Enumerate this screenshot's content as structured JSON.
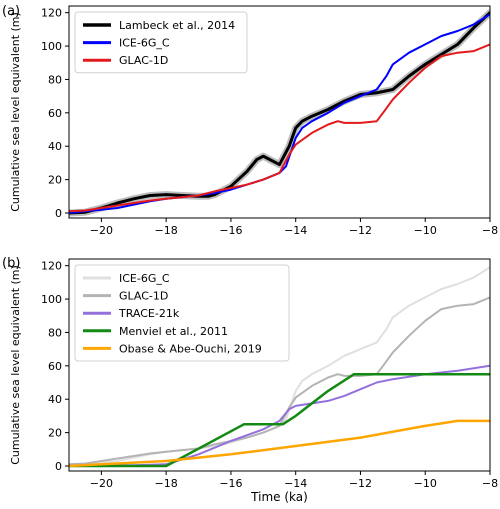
{
  "panels": [
    {
      "letter": "(a)"
    },
    {
      "letter": "(b)"
    }
  ],
  "chart_data": [
    {
      "type": "line",
      "panel": "(a)",
      "xlabel": "",
      "ylabel": "Cumulative sea level equivalent (m)",
      "xlim": [
        -21,
        -8
      ],
      "ylim": [
        -3,
        124
      ],
      "xticks": [
        -20,
        -18,
        -16,
        -14,
        -12,
        -10,
        -8
      ],
      "yticks": [
        0,
        20,
        40,
        60,
        80,
        100,
        120
      ],
      "grid": false,
      "legend": "top-left",
      "series": [
        {
          "name": "Lambeck et al., 2014",
          "color": "#000000",
          "band_color": "#bdbdbd",
          "width": 3,
          "x": [
            -21,
            -20.5,
            -20,
            -19.5,
            -19,
            -18.5,
            -18,
            -17.5,
            -17,
            -16.7,
            -16.5,
            -16,
            -15.5,
            -15.2,
            -15,
            -14.8,
            -14.5,
            -14.2,
            -14,
            -13.8,
            -13.5,
            -13,
            -12.5,
            -12,
            -11.5,
            -11,
            -10.5,
            -10,
            -9.5,
            -9,
            -8.5,
            -8
          ],
          "y": [
            0,
            0.5,
            3,
            6,
            8.5,
            10.5,
            11,
            10.5,
            10,
            10,
            11,
            16,
            25,
            32,
            34,
            32,
            29,
            40,
            51,
            55,
            58,
            62,
            67,
            71,
            72,
            74,
            82,
            89,
            95,
            101,
            111,
            120
          ]
        },
        {
          "name": "ICE-6G_C",
          "color": "#0000ff",
          "width": 2,
          "x": [
            -21,
            -20.5,
            -20,
            -19.5,
            -19,
            -18.5,
            -18,
            -17.5,
            -17,
            -16.5,
            -16,
            -15.5,
            -15,
            -14.5,
            -14.3,
            -14,
            -13.8,
            -13.5,
            -13,
            -12.5,
            -12,
            -11.5,
            -11.2,
            -11,
            -10.5,
            -10,
            -9.5,
            -9,
            -8.5,
            -8
          ],
          "y": [
            0,
            1,
            2,
            3,
            5,
            7,
            8.5,
            9.5,
            10.5,
            12,
            14,
            17,
            20,
            24,
            28,
            45,
            51,
            55,
            60,
            66,
            70,
            74,
            82,
            89,
            96,
            101,
            106,
            109,
            113,
            119
          ]
        },
        {
          "name": "GLAC-1D",
          "color": "#e31a1c",
          "width": 2,
          "x": [
            -21,
            -20.5,
            -20,
            -19.5,
            -19,
            -18.5,
            -18,
            -17.5,
            -17,
            -16.5,
            -16,
            -15.5,
            -15,
            -14.5,
            -14.2,
            -14,
            -13.5,
            -13,
            -12.7,
            -12.5,
            -12,
            -11.5,
            -11.3,
            -11,
            -10.5,
            -10,
            -9.5,
            -9,
            -8.5,
            -8
          ],
          "y": [
            1,
            1.5,
            3,
            4.5,
            6,
            7.5,
            8.5,
            9.5,
            10.5,
            13,
            15,
            17,
            20,
            24,
            35,
            41,
            48,
            53,
            55,
            54,
            54,
            55,
            60,
            68,
            78,
            87,
            94,
            96,
            97,
            101
          ]
        }
      ]
    },
    {
      "type": "line",
      "panel": "(b)",
      "xlabel": "Time (ka)",
      "ylabel": "Cumulative sea level equivalent (m)",
      "xlim": [
        -21,
        -8
      ],
      "ylim": [
        -3,
        124
      ],
      "xticks": [
        -20,
        -18,
        -16,
        -14,
        -12,
        -10,
        -8
      ],
      "yticks": [
        0,
        20,
        40,
        60,
        80,
        100,
        120
      ],
      "grid": false,
      "legend": "top-left",
      "series": [
        {
          "name": "ICE-6G_C",
          "color": "#e0e0e0",
          "width": 2,
          "x": [
            -21,
            -20.5,
            -20,
            -19.5,
            -19,
            -18.5,
            -18,
            -17.5,
            -17,
            -16.5,
            -16,
            -15.5,
            -15,
            -14.5,
            -14.3,
            -14,
            -13.8,
            -13.5,
            -13,
            -12.5,
            -12,
            -11.5,
            -11.2,
            -11,
            -10.5,
            -10,
            -9.5,
            -9,
            -8.5,
            -8
          ],
          "y": [
            0,
            1,
            2,
            3,
            5,
            7,
            8.5,
            9.5,
            10.5,
            12,
            14,
            17,
            20,
            24,
            28,
            45,
            51,
            55,
            60,
            66,
            70,
            74,
            82,
            89,
            96,
            101,
            106,
            109,
            113,
            119
          ]
        },
        {
          "name": "GLAC-1D",
          "color": "#b4b4b4",
          "width": 2,
          "x": [
            -21,
            -20.5,
            -20,
            -19.5,
            -19,
            -18.5,
            -18,
            -17.5,
            -17,
            -16.5,
            -16,
            -15.5,
            -15,
            -14.5,
            -14.2,
            -14,
            -13.5,
            -13,
            -12.7,
            -12.5,
            -12,
            -11.5,
            -11.3,
            -11,
            -10.5,
            -10,
            -9.5,
            -9,
            -8.5,
            -8
          ],
          "y": [
            1,
            1.5,
            3,
            4.5,
            6,
            7.5,
            8.5,
            9.5,
            10.5,
            13,
            15,
            17,
            20,
            24,
            35,
            41,
            48,
            53,
            55,
            54,
            54,
            55,
            60,
            68,
            78,
            87,
            94,
            96,
            97,
            101
          ]
        },
        {
          "name": "TRACE-21k",
          "color": "#9370db",
          "width": 2,
          "x": [
            -21,
            -19,
            -18,
            -17,
            -16,
            -15,
            -14.5,
            -14.2,
            -14,
            -13,
            -12.5,
            -12,
            -11.5,
            -11,
            -10,
            -9,
            -8
          ],
          "y": [
            0,
            0.5,
            1,
            7,
            15,
            22,
            27,
            34,
            36,
            39,
            42,
            46,
            50,
            52,
            55,
            57,
            60
          ]
        },
        {
          "name": "Menviel et al., 2011",
          "color": "#138a13",
          "width": 2.5,
          "x": [
            -21,
            -18,
            -15.6,
            -14.4,
            -14,
            -13,
            -12.2,
            -12,
            -10,
            -8
          ],
          "y": [
            0,
            0,
            25,
            25,
            30,
            45,
            55,
            55,
            55,
            55
          ]
        },
        {
          "name": "Obase & Abe-Ouchi, 2019",
          "color": "#ffa500",
          "width": 2.5,
          "x": [
            -21,
            -20,
            -18,
            -16,
            -14,
            -12,
            -10,
            -9,
            -8
          ],
          "y": [
            0,
            1,
            3,
            7,
            12,
            17,
            24,
            27,
            27
          ]
        }
      ]
    }
  ]
}
